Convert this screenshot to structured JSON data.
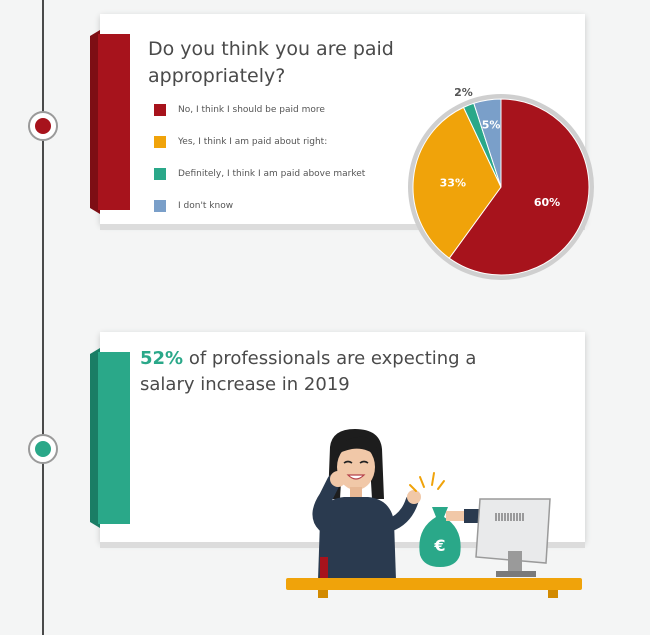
{
  "survey": {
    "question": "Do you think you are paid appropriately?",
    "legend": [
      {
        "label": "No, I think I should be paid more",
        "color": "#a7131c"
      },
      {
        "label": "Yes, I think I am paid about right:",
        "color": "#f0a30a"
      },
      {
        "label": "Definitely, I think I am paid above market",
        "color": "#2aa889"
      },
      {
        "label": "I don't know",
        "color": "#7a9fc9"
      }
    ]
  },
  "chart_data": {
    "type": "pie",
    "title": "Do you think you are paid appropriately?",
    "categories": [
      "No, I think I should be paid more",
      "Yes, I think I am paid about right:",
      "Definitely, I think I am paid above market",
      "I don't know"
    ],
    "values": [
      60,
      33,
      2,
      5
    ],
    "value_labels": [
      "60%",
      "33%",
      "2%",
      "5%"
    ],
    "colors": [
      "#a7131c",
      "#f0a30a",
      "#2aa889",
      "#7a9fc9"
    ]
  },
  "insight": {
    "highlight": "52%",
    "text": "of professionals are expecting a salary increase in 2019",
    "accent_color": "#2aa889",
    "bag_symbol": "€"
  },
  "colors": {
    "red": "#a7131c",
    "teal": "#2aa889",
    "orange": "#f0a30a",
    "blue": "#7a9fc9"
  }
}
